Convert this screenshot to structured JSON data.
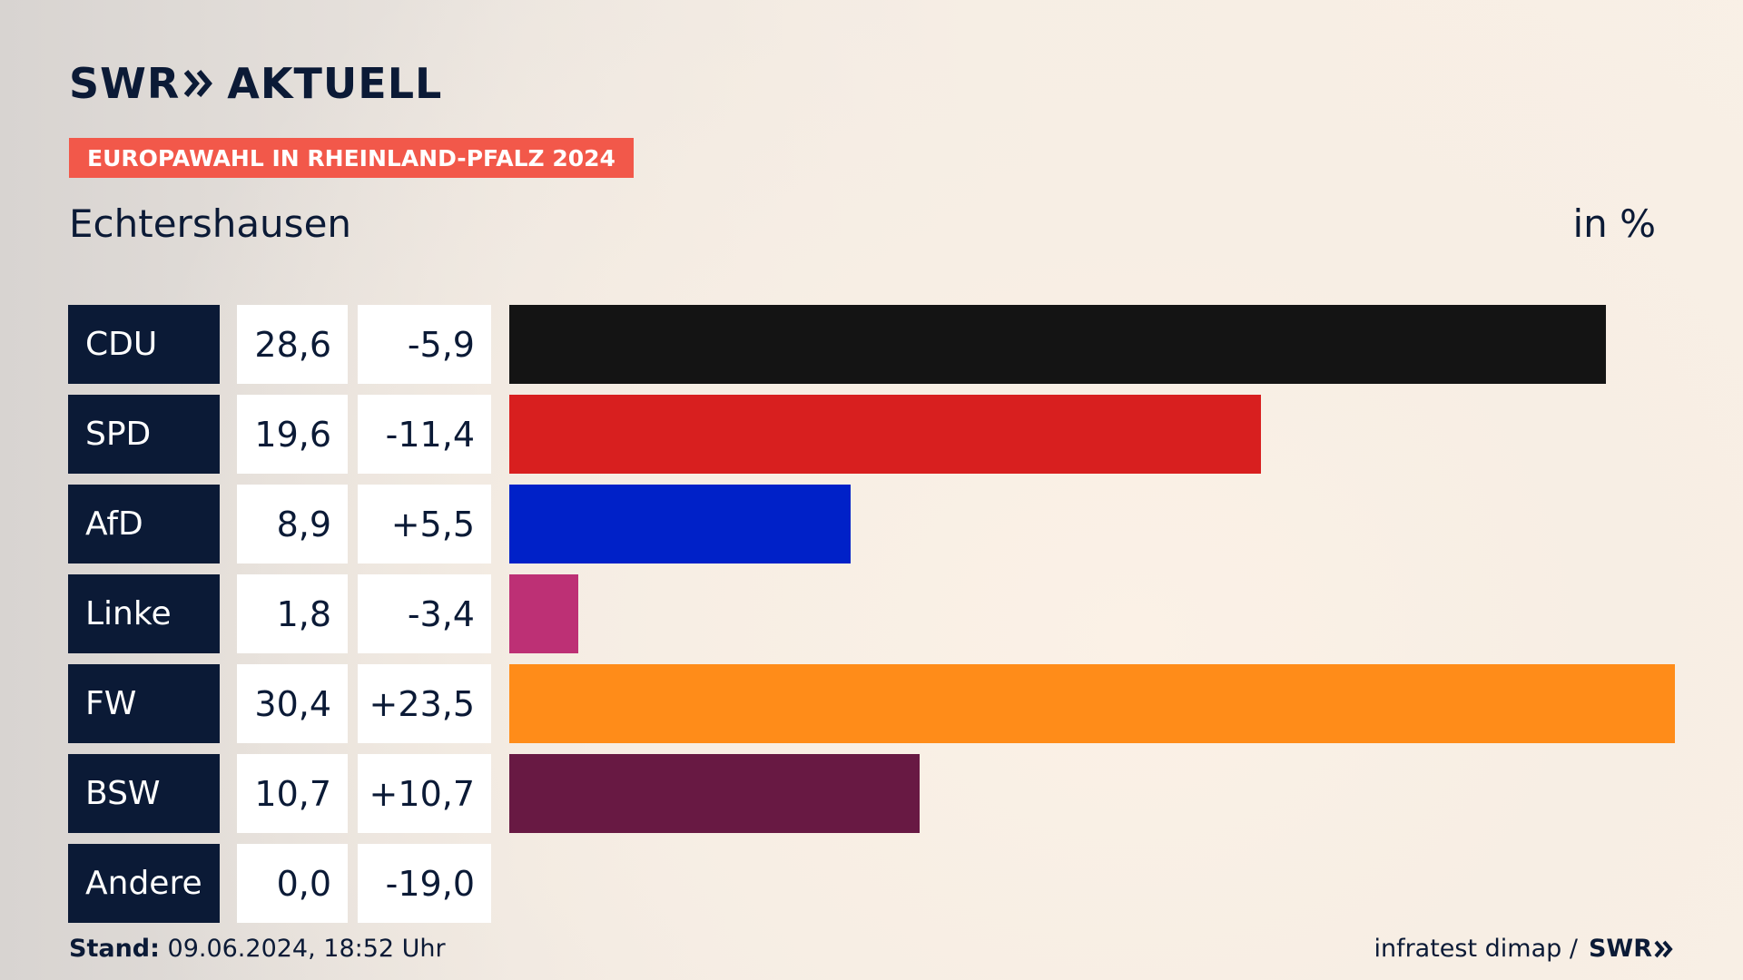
{
  "brand": {
    "logo_text": "SWR",
    "logo_suffix": "AKTUELL"
  },
  "event_badge": "EUROPAWAHL IN RHEINLAND-PFALZ 2024",
  "region": "Echtershausen",
  "unit_label": "in %",
  "colors": {
    "navy": "#0b1a36",
    "badge": "#f2584a",
    "CDU": "#141414",
    "SPD": "#d81f1f",
    "AfD": "#0021c8",
    "Linke": "#bd3075",
    "FW": "#ff8c19",
    "BSW": "#681943",
    "Andere": "#9e9e9e"
  },
  "chart_data": {
    "type": "bar",
    "orientation": "horizontal",
    "categories": [
      "CDU",
      "SPD",
      "AfD",
      "Linke",
      "FW",
      "BSW",
      "Andere"
    ],
    "values": [
      28.6,
      19.6,
      8.9,
      1.8,
      30.4,
      10.7,
      0.0
    ],
    "value_labels": [
      "28,6",
      "19,6",
      "8,9",
      "1,8",
      "30,4",
      "10,7",
      "0,0"
    ],
    "diffs": [
      -5.9,
      -11.4,
      5.5,
      -3.4,
      23.5,
      10.7,
      -19.0
    ],
    "diff_labels": [
      "-5,9",
      "-11,4",
      "+5,5",
      "-3,4",
      "+23,5",
      "+10,7",
      "-19,0"
    ],
    "xlim": [
      0,
      30.4
    ],
    "unit": "in %"
  },
  "footer": {
    "stand_label": "Stand:",
    "stand_value": "09.06.2024, 18:52 Uhr",
    "source": "infratest dimap /",
    "source_brand": "SWR"
  }
}
